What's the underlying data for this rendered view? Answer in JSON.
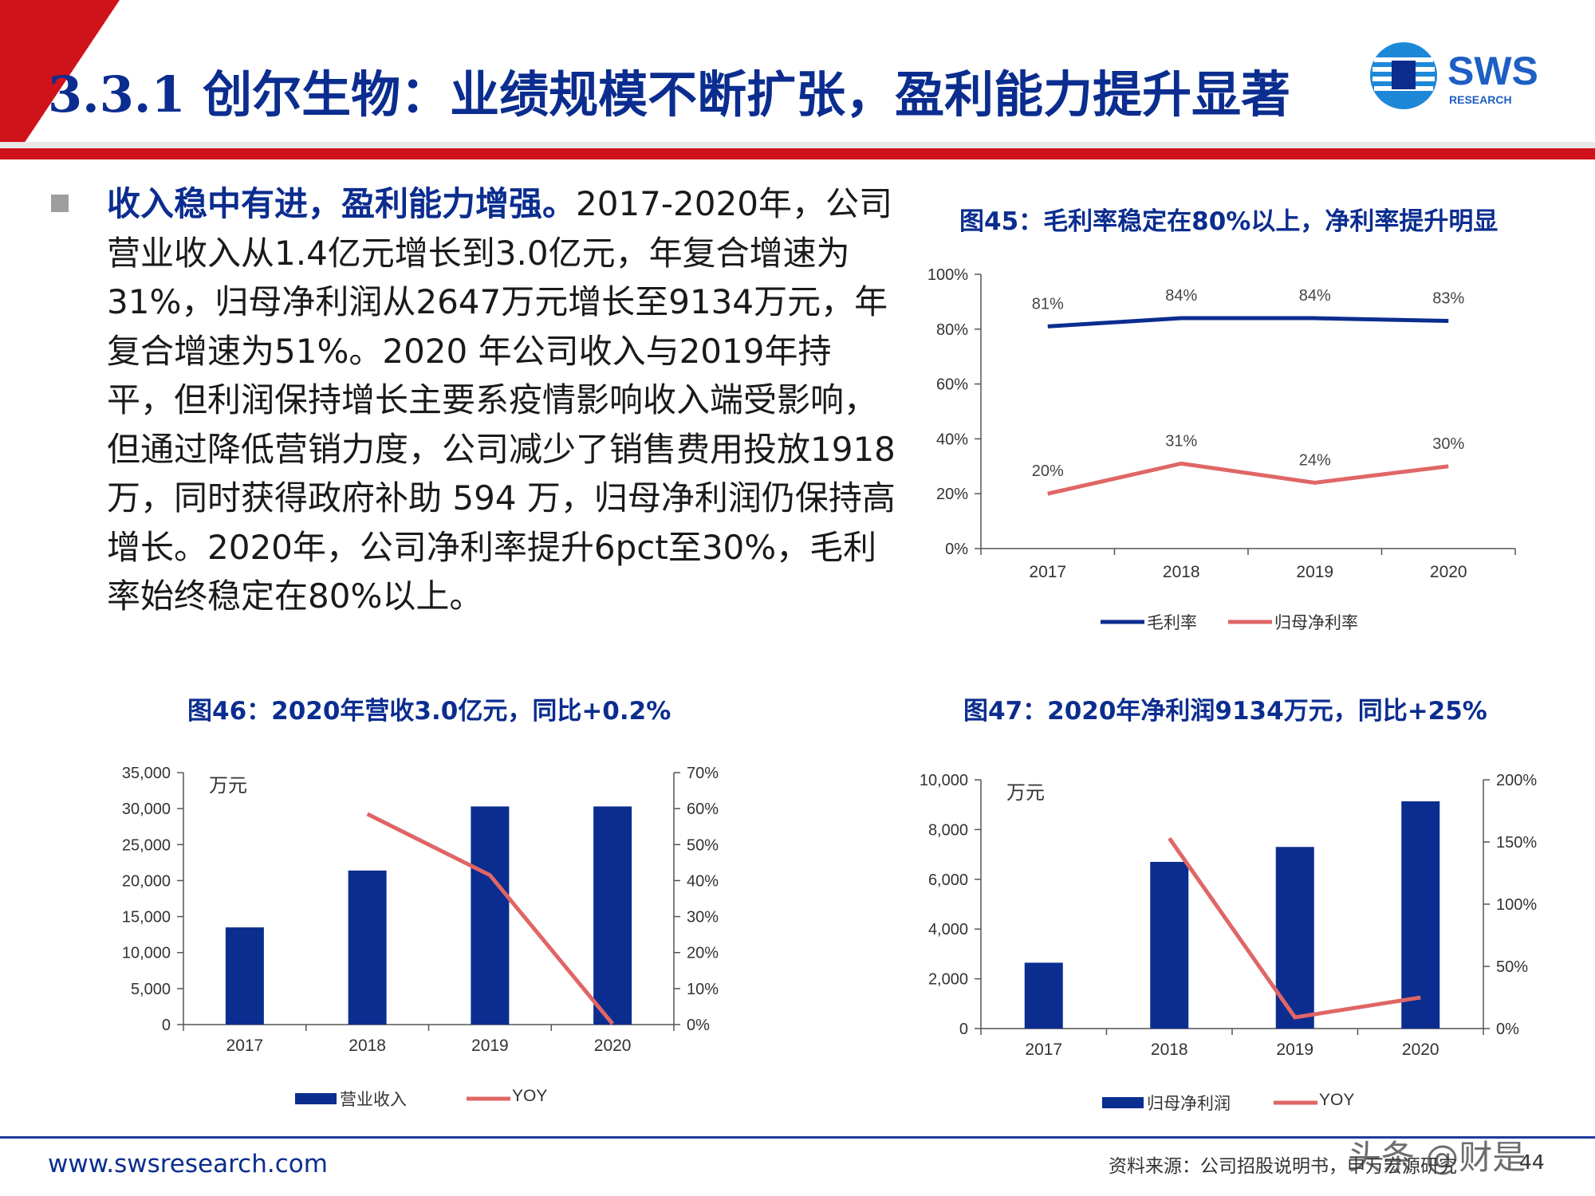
{
  "header": {
    "title": "3.3.1 创尔生物：业绩规模不断扩张，盈利能力提升显著",
    "logo_text": "SWS",
    "logo_subtext": "RESEARCH"
  },
  "body": {
    "lead": "收入稳中有进，盈利能力增强。",
    "text": "2017-2020年，公司营业收入从1.4亿元增长到3.0亿元，年复合增速为31%，归母净利润从2647万元增长至9134万元，年复合增速为51%。2020 年公司收入与2019年持平，但利润保持增长主要系疫情影响收入端受影响，但通过降低营销力度，公司减少了销售费用投放1918万，同时获得政府补助 594 万，归母净利润仍保持高增长。2020年，公司净利率提升6pct至30%，毛利率始终稳定在80%以上。"
  },
  "figures": {
    "fig45_title": "图45：毛利率稳定在80%以上，净利率提升明显",
    "fig46_title": "图46：2020年营收3.0亿元，同比+0.2%",
    "fig47_title": "图47：2020年净利润9134万元，同比+25%"
  },
  "chart_data": [
    {
      "id": "fig45",
      "type": "line",
      "categories": [
        "2017",
        "2018",
        "2019",
        "2020"
      ],
      "series": [
        {
          "name": "毛利率",
          "values": [
            81,
            84,
            84,
            83
          ],
          "labels": [
            "81%",
            "84%",
            "84%",
            "83%"
          ],
          "color": "#0b2d8f"
        },
        {
          "name": "归母净利率",
          "values": [
            20,
            31,
            24,
            30
          ],
          "labels": [
            "20%",
            "31%",
            "24%",
            "30%"
          ],
          "color": "#e06666"
        }
      ],
      "ylim": [
        0,
        100
      ],
      "yticks": [
        "0%",
        "20%",
        "40%",
        "60%",
        "80%",
        "100%"
      ],
      "legend": "bottom",
      "grid": false
    },
    {
      "id": "fig46",
      "type": "bar",
      "categories": [
        "2017",
        "2018",
        "2019",
        "2020"
      ],
      "unit_label": "万元",
      "series": [
        {
          "name": "营业收入",
          "type": "bar",
          "axis": "left",
          "values": [
            13500,
            21400,
            30300,
            30300
          ],
          "color": "#0b2d8f"
        },
        {
          "name": "YOY",
          "type": "line",
          "axis": "right",
          "values": [
            null,
            58.5,
            41.5,
            0.2
          ],
          "color": "#e06666"
        }
      ],
      "ylim_left": [
        0,
        35000
      ],
      "yticks_left": [
        "0",
        "5,000",
        "10,000",
        "15,000",
        "20,000",
        "25,000",
        "30,000",
        "35,000"
      ],
      "ylim_right": [
        0,
        70
      ],
      "yticks_right": [
        "0%",
        "10%",
        "20%",
        "30%",
        "40%",
        "50%",
        "60%",
        "70%"
      ],
      "legend": "bottom",
      "grid": false
    },
    {
      "id": "fig47",
      "type": "bar",
      "categories": [
        "2017",
        "2018",
        "2019",
        "2020"
      ],
      "unit_label": "万元",
      "series": [
        {
          "name": "归母净利润",
          "type": "bar",
          "axis": "left",
          "values": [
            2647,
            6700,
            7300,
            9134
          ],
          "color": "#0b2d8f"
        },
        {
          "name": "YOY",
          "type": "line",
          "axis": "right",
          "values": [
            null,
            153,
            9,
            25
          ],
          "color": "#e06666"
        }
      ],
      "ylim_left": [
        0,
        10000
      ],
      "yticks_left": [
        "0",
        "2,000",
        "4,000",
        "6,000",
        "8,000",
        "10,000"
      ],
      "ylim_right": [
        0,
        200
      ],
      "yticks_right": [
        "0%",
        "50%",
        "100%",
        "150%",
        "200%"
      ],
      "legend": "bottom",
      "grid": false
    }
  ],
  "footer": {
    "url": "www.swsresearch.com",
    "source": "资料来源：公司招股说明书，申万宏源研究",
    "page": "44",
    "watermark": "头条 @财是"
  }
}
